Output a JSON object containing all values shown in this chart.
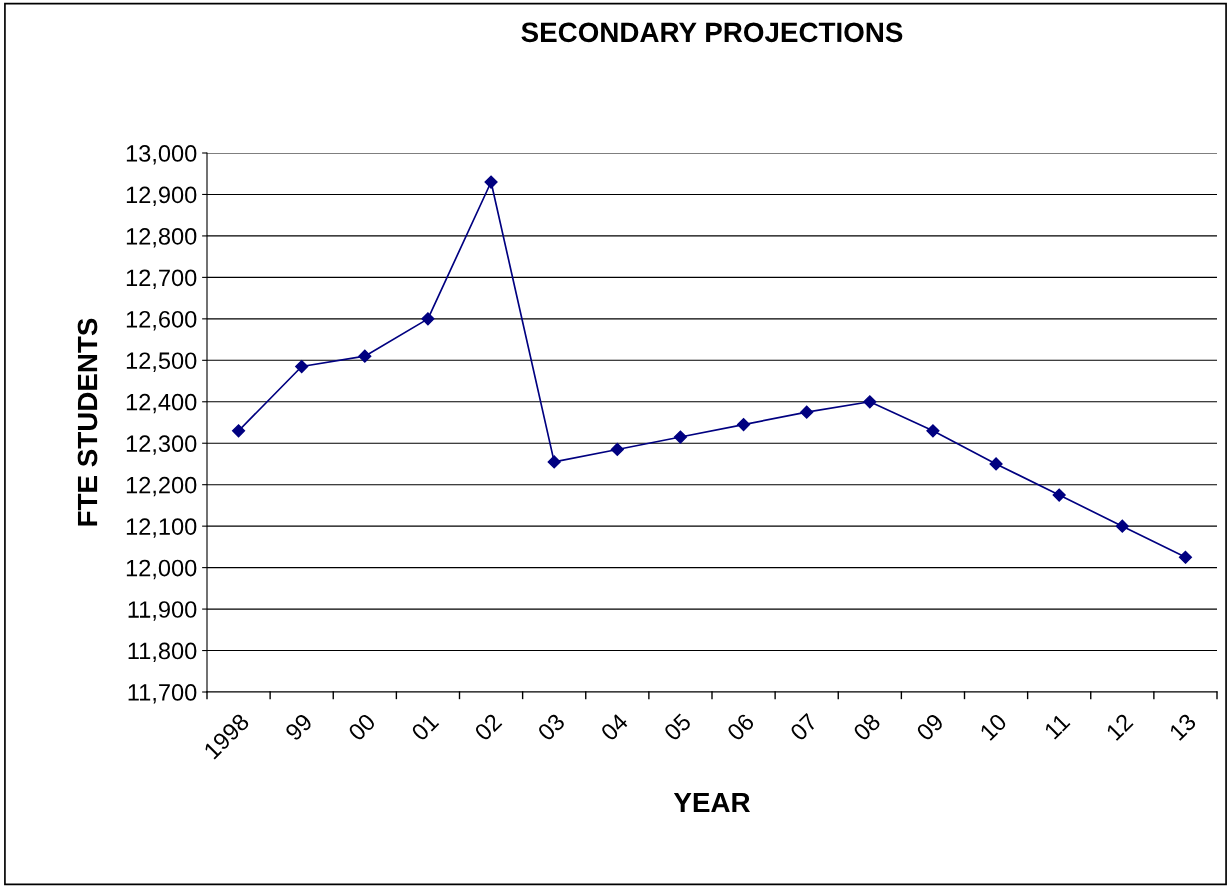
{
  "chart_data": {
    "type": "line",
    "title": "SECONDARY PROJECTIONS",
    "xlabel": "YEAR",
    "ylabel": "FTE STUDENTS",
    "categories": [
      "1998",
      "99",
      "00",
      "01",
      "02",
      "03",
      "04",
      "05",
      "06",
      "07",
      "08",
      "09",
      "10",
      "11",
      "12",
      "13"
    ],
    "series": [
      {
        "color": "#000080",
        "values": [
          12330,
          12485,
          12510,
          12600,
          12930,
          12255,
          12285,
          12315,
          12345,
          12375,
          12400,
          12330,
          12250,
          12175,
          12100,
          12025
        ]
      }
    ],
    "ylim": [
      11700,
      13000
    ],
    "yticks": [
      {
        "value": 11700,
        "label": "11,700"
      },
      {
        "value": 11800,
        "label": "11,800"
      },
      {
        "value": 11900,
        "label": "11,900"
      },
      {
        "value": 12000,
        "label": "12,000"
      },
      {
        "value": 12100,
        "label": "12,100"
      },
      {
        "value": 12200,
        "label": "12,200"
      },
      {
        "value": 12300,
        "label": "12,300"
      },
      {
        "value": 12400,
        "label": "12,400"
      },
      {
        "value": 12500,
        "label": "12,500"
      },
      {
        "value": 12600,
        "label": "12,600"
      },
      {
        "value": 12700,
        "label": "12,700"
      },
      {
        "value": 12800,
        "label": "12,800"
      },
      {
        "value": 12900,
        "label": "12,900"
      },
      {
        "value": 13000,
        "label": "13,000"
      }
    ],
    "grid": "y",
    "marker": "diamond",
    "line_style": "solid"
  }
}
